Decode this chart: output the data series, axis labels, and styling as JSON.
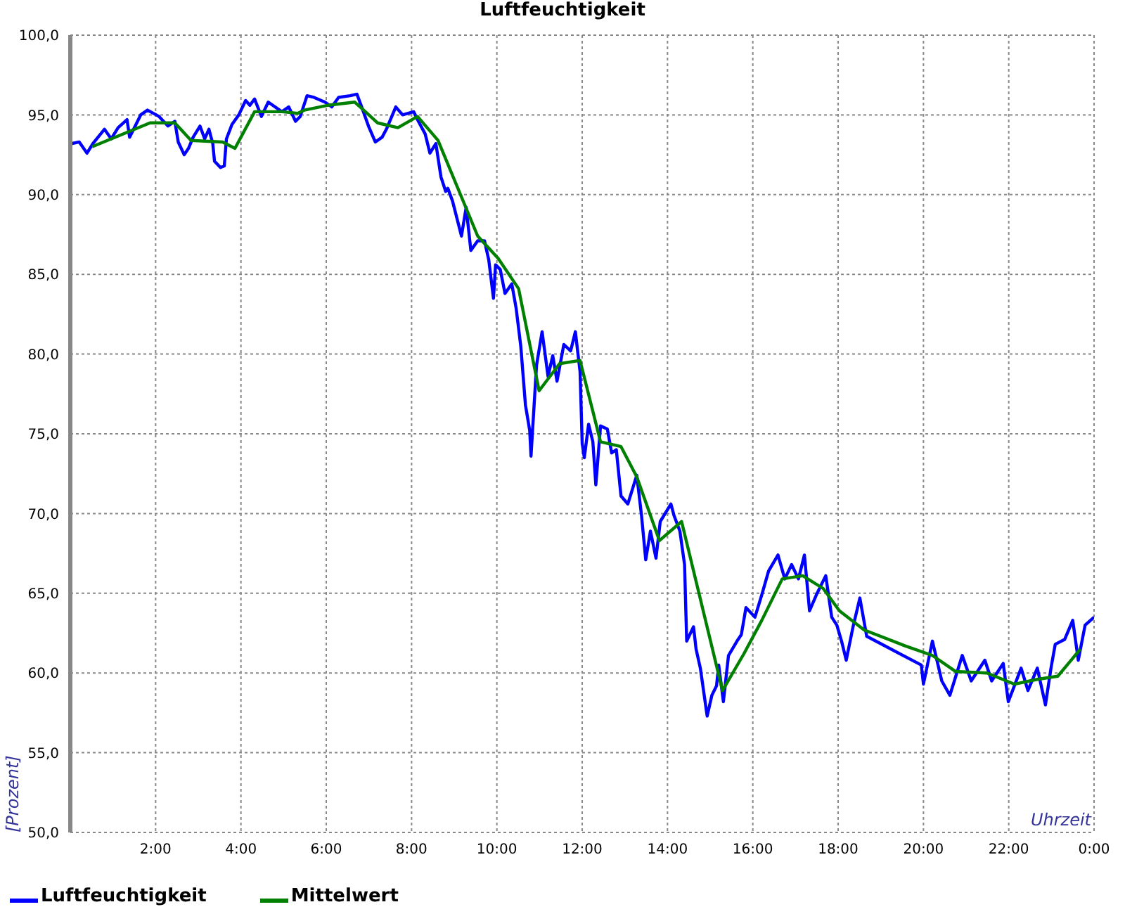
{
  "chart_data": {
    "type": "line",
    "title": "Luftfeuchtigkeit",
    "xlabel": "Uhrzeit",
    "ylabel": "[Prozent]",
    "xlim": [
      0,
      24
    ],
    "xticks": [
      {
        "value": 2,
        "label": "2:00"
      },
      {
        "value": 4,
        "label": "4:00"
      },
      {
        "value": 6,
        "label": "6:00"
      },
      {
        "value": 8,
        "label": "8:00"
      },
      {
        "value": 10,
        "label": "10:00"
      },
      {
        "value": 12,
        "label": "12:00"
      },
      {
        "value": 14,
        "label": "14:00"
      },
      {
        "value": 16,
        "label": "16:00"
      },
      {
        "value": 18,
        "label": "18:00"
      },
      {
        "value": 20,
        "label": "20:00"
      },
      {
        "value": 22,
        "label": "22:00"
      },
      {
        "value": 24,
        "label": "0:00"
      }
    ],
    "ylim": [
      50,
      100
    ],
    "yticks": [
      {
        "value": 50,
        "label": "50,0"
      },
      {
        "value": 55,
        "label": "55,0"
      },
      {
        "value": 60,
        "label": "60,0"
      },
      {
        "value": 65,
        "label": "65,0"
      },
      {
        "value": 70,
        "label": "70,0"
      },
      {
        "value": 75,
        "label": "75,0"
      },
      {
        "value": 80,
        "label": "80,0"
      },
      {
        "value": 85,
        "label": "85,0"
      },
      {
        "value": 90,
        "label": "90,0"
      },
      {
        "value": 95,
        "label": "95,0"
      },
      {
        "value": 100,
        "label": "100,0"
      }
    ],
    "grid": true,
    "legend": "bottom left",
    "series": [
      {
        "name": "Luftfeuchtigkeit",
        "color": "#0000ff",
        "x": [
          0.03,
          0.21,
          0.39,
          0.53,
          0.8,
          0.96,
          1.12,
          1.33,
          1.39,
          1.65,
          1.81,
          2.08,
          2.29,
          2.45,
          2.53,
          2.67,
          2.77,
          2.88,
          3.04,
          3.15,
          3.25,
          3.34,
          3.38,
          3.52,
          3.61,
          3.66,
          3.79,
          3.95,
          4.11,
          4.21,
          4.32,
          4.48,
          4.64,
          4.96,
          5.12,
          5.28,
          5.39,
          5.55,
          5.71,
          5.97,
          6.13,
          6.29,
          6.56,
          6.72,
          6.83,
          6.99,
          7.15,
          7.31,
          7.41,
          7.63,
          7.79,
          8.05,
          8.16,
          8.32,
          8.43,
          8.57,
          8.69,
          8.8,
          8.85,
          8.96,
          9.17,
          9.28,
          9.39,
          9.55,
          9.71,
          9.81,
          9.92,
          9.97,
          10.08,
          10.19,
          10.35,
          10.45,
          10.56,
          10.67,
          10.77,
          10.8,
          10.93,
          11.06,
          11.2,
          11.31,
          11.41,
          11.57,
          11.73,
          11.84,
          11.95,
          12.0,
          12.05,
          12.15,
          12.25,
          12.32,
          12.43,
          12.59,
          12.69,
          12.8,
          12.91,
          13.07,
          13.28,
          13.39,
          13.49,
          13.6,
          13.73,
          13.83,
          14.08,
          14.15,
          14.29,
          14.4,
          14.45,
          14.61,
          14.67,
          14.77,
          14.93,
          15.04,
          15.15,
          15.2,
          15.31,
          15.43,
          15.63,
          15.73,
          15.84,
          16.05,
          16.21,
          16.37,
          16.59,
          16.75,
          16.91,
          17.07,
          17.21,
          17.33,
          17.49,
          17.71,
          17.85,
          17.97,
          18.08,
          18.19,
          18.35,
          18.51,
          18.67,
          19.95,
          20.0,
          20.21,
          20.43,
          20.62,
          20.91,
          21.12,
          21.44,
          21.6,
          21.87,
          21.99,
          22.29,
          22.45,
          22.67,
          22.86,
          22.99,
          23.09,
          23.31,
          23.5,
          23.63,
          23.79,
          24.0
        ],
        "values": [
          93.2,
          93.3,
          92.6,
          93.2,
          94.1,
          93.5,
          94.2,
          94.7,
          93.6,
          95.0,
          95.3,
          94.9,
          94.3,
          94.6,
          93.3,
          92.5,
          92.9,
          93.6,
          94.3,
          93.5,
          94.1,
          93.2,
          92.1,
          91.7,
          91.8,
          93.5,
          94.4,
          95.0,
          95.9,
          95.6,
          96.0,
          94.9,
          95.8,
          95.2,
          95.5,
          94.6,
          94.9,
          96.2,
          96.1,
          95.8,
          95.5,
          96.1,
          96.2,
          96.3,
          95.5,
          94.3,
          93.3,
          93.6,
          94.1,
          95.5,
          95.0,
          95.2,
          94.6,
          93.8,
          92.6,
          93.2,
          91.1,
          90.2,
          90.4,
          89.6,
          87.4,
          89.2,
          86.5,
          87.1,
          87.1,
          85.9,
          83.5,
          85.6,
          85.3,
          83.8,
          84.4,
          82.9,
          80.5,
          76.8,
          75.2,
          73.6,
          79.3,
          81.4,
          78.6,
          79.9,
          78.3,
          80.6,
          80.2,
          81.4,
          78.9,
          74.4,
          73.5,
          75.6,
          74.5,
          71.8,
          75.5,
          75.3,
          73.8,
          74.0,
          71.1,
          70.6,
          72.4,
          69.9,
          67.1,
          68.9,
          67.2,
          69.5,
          70.6,
          69.9,
          68.9,
          66.8,
          62.0,
          62.9,
          61.5,
          60.3,
          57.3,
          58.6,
          59.2,
          60.5,
          58.2,
          61.1,
          62.0,
          62.4,
          64.1,
          63.5,
          64.9,
          66.4,
          67.4,
          65.9,
          66.8,
          65.9,
          67.4,
          63.9,
          64.9,
          66.1,
          63.5,
          63.0,
          62.0,
          60.8,
          62.9,
          64.7,
          62.3,
          60.5,
          59.3,
          62.0,
          59.5,
          58.6,
          61.1,
          59.5,
          60.8,
          59.5,
          60.6,
          58.2,
          60.3,
          58.9,
          60.3,
          58.0,
          60.3,
          61.8,
          62.1,
          63.3,
          60.8,
          63.0,
          63.5
        ]
      },
      {
        "name": "Mittelwert",
        "color": "#008000",
        "x": [
          0.51,
          1.87,
          2.45,
          2.83,
          3.57,
          3.86,
          4.32,
          4.96,
          5.33,
          5.49,
          6.03,
          6.67,
          7.2,
          7.68,
          8.14,
          8.62,
          9.55,
          10.03,
          10.51,
          10.99,
          11.47,
          11.95,
          12.43,
          12.91,
          13.28,
          13.81,
          14.33,
          15.29,
          15.79,
          16.21,
          16.69,
          17.17,
          17.65,
          18.03,
          18.61,
          19.57,
          20.21,
          20.75,
          21.49,
          22.13,
          22.67,
          23.15,
          23.68
        ],
        "values": [
          93.0,
          94.5,
          94.5,
          93.4,
          93.3,
          92.9,
          95.2,
          95.2,
          95.1,
          95.3,
          95.6,
          95.8,
          94.5,
          94.2,
          94.9,
          93.4,
          87.4,
          86.0,
          84.1,
          77.7,
          79.4,
          79.6,
          74.5,
          74.2,
          72.3,
          68.3,
          69.5,
          58.9,
          61.2,
          63.3,
          65.9,
          66.1,
          65.3,
          63.9,
          62.7,
          61.7,
          61.1,
          60.1,
          60.0,
          59.3,
          59.6,
          59.8,
          61.5
        ]
      }
    ]
  }
}
